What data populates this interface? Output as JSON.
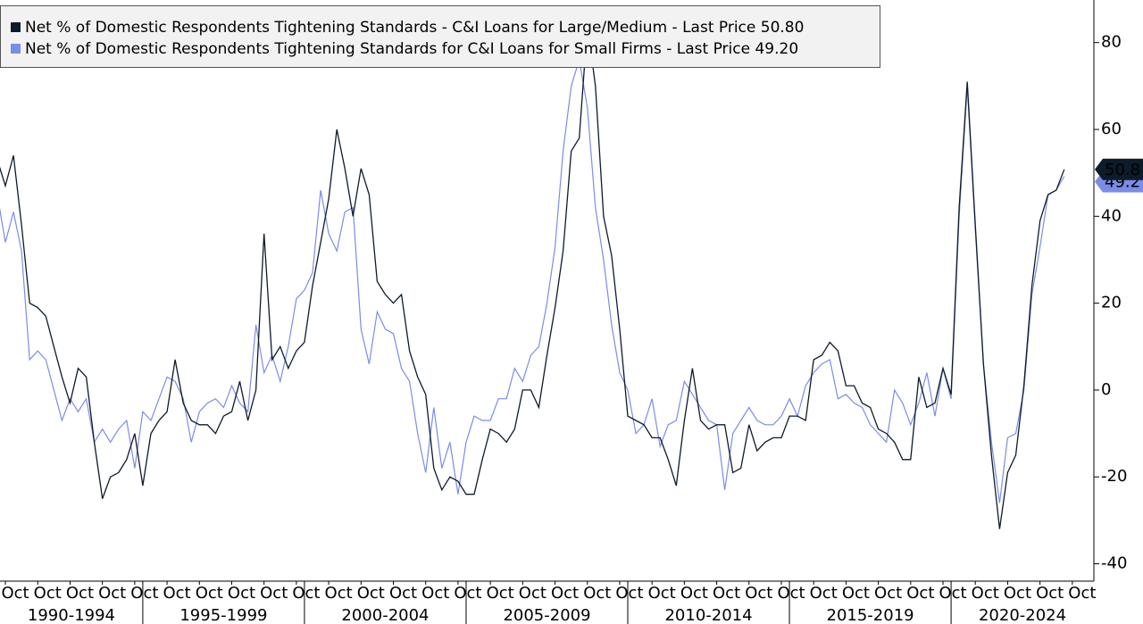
{
  "chart_data": {
    "type": "line",
    "x": [
      "1990-07",
      "1990-10",
      "1991-01",
      "1991-04",
      "1991-07",
      "1991-10",
      "1992-01",
      "1992-04",
      "1992-07",
      "1992-10",
      "1993-01",
      "1993-04",
      "1993-07",
      "1993-10",
      "1994-01",
      "1994-04",
      "1994-07",
      "1994-10",
      "1995-01",
      "1995-04",
      "1995-07",
      "1995-10",
      "1996-01",
      "1996-04",
      "1996-07",
      "1996-10",
      "1997-01",
      "1997-04",
      "1997-07",
      "1997-10",
      "1998-01",
      "1998-04",
      "1998-07",
      "1998-10",
      "1999-01",
      "1999-04",
      "1999-07",
      "1999-10",
      "2000-01",
      "2000-04",
      "2000-07",
      "2000-10",
      "2001-01",
      "2001-04",
      "2001-07",
      "2001-10",
      "2002-01",
      "2002-04",
      "2002-07",
      "2002-10",
      "2003-01",
      "2003-04",
      "2003-07",
      "2003-10",
      "2004-01",
      "2004-04",
      "2004-07",
      "2004-10",
      "2005-01",
      "2005-04",
      "2005-07",
      "2005-10",
      "2006-01",
      "2006-04",
      "2006-07",
      "2006-10",
      "2007-01",
      "2007-04",
      "2007-07",
      "2007-10",
      "2008-01",
      "2008-04",
      "2008-07",
      "2008-10",
      "2009-01",
      "2009-04",
      "2009-07",
      "2009-10",
      "2010-01",
      "2010-04",
      "2010-07",
      "2010-10",
      "2011-01",
      "2011-04",
      "2011-07",
      "2011-10",
      "2012-01",
      "2012-04",
      "2012-07",
      "2012-10",
      "2013-01",
      "2013-04",
      "2013-07",
      "2013-10",
      "2014-01",
      "2014-04",
      "2014-07",
      "2014-10",
      "2015-01",
      "2015-04",
      "2015-07",
      "2015-10",
      "2016-01",
      "2016-04",
      "2016-07",
      "2016-10",
      "2017-01",
      "2017-04",
      "2017-07",
      "2017-10",
      "2018-01",
      "2018-04",
      "2018-07",
      "2018-10",
      "2019-01",
      "2019-04",
      "2019-07",
      "2019-10",
      "2020-01",
      "2020-04",
      "2020-07",
      "2020-10",
      "2021-01",
      "2021-04",
      "2021-07",
      "2021-10",
      "2022-01",
      "2022-04",
      "2022-07",
      "2022-10",
      "2023-01",
      "2023-04",
      "2023-07"
    ],
    "series": [
      {
        "name": "Net % of Domestic Respondents Tightening Standards - C&I Loans for Large/Medium - Last Price 50.80",
        "last_label": "50.8",
        "color": "#0d1b2a",
        "values": [
          53,
          47,
          54,
          38,
          20,
          19,
          17,
          10,
          3,
          -3,
          5,
          3,
          -12,
          -25,
          -20,
          -19,
          -16,
          -10,
          -22,
          -10,
          -7,
          -5,
          7,
          -3,
          -7,
          -8,
          -8,
          -10,
          -6,
          -5,
          2,
          -7,
          0,
          36,
          7,
          10,
          5,
          9,
          11,
          24,
          34,
          44,
          60,
          51,
          40,
          51,
          45,
          25,
          22,
          20,
          22,
          9,
          3,
          -1,
          -18,
          -23,
          -20,
          -21,
          -24,
          -24,
          -16,
          -9,
          -10,
          -12,
          -9,
          0,
          0,
          -4,
          8,
          19,
          32,
          55,
          58,
          84,
          70,
          40,
          31,
          14,
          -6,
          -7,
          -8,
          -11,
          -11,
          -16,
          -22,
          -7,
          5,
          -7,
          -9,
          -8,
          -8,
          -19,
          -18,
          -8,
          -14,
          -12,
          -11,
          -11,
          -6,
          -6,
          -7,
          7,
          8,
          11,
          9,
          1,
          1,
          -3,
          -4,
          -9,
          -10,
          -12,
          -16,
          -16,
          3,
          -4,
          -3,
          5,
          -1,
          42,
          71,
          38,
          6,
          -15,
          -32,
          -19,
          -15,
          1,
          24,
          39,
          45,
          46,
          50.8
        ]
      },
      {
        "name": "Net % of Domestic Respondents Tightening Standards for C&I Loans for Small Firms - Last Price  49.20",
        "last_label": "49.2",
        "color": "#7b8ce8",
        "values": [
          45,
          34,
          41,
          32,
          7,
          9,
          7,
          0,
          -7,
          -2,
          -5,
          -2,
          -12,
          -9,
          -12,
          -9,
          -7,
          -18,
          -5,
          -7,
          -2,
          3,
          2,
          -2,
          -12,
          -5,
          -3,
          -2,
          -4,
          1,
          -3,
          -5,
          15,
          4,
          8,
          2,
          10,
          21,
          23,
          27,
          46,
          36,
          32,
          41,
          42,
          14,
          6,
          18,
          14,
          13,
          5,
          2,
          -10,
          -19,
          -4,
          -18,
          -12,
          -24,
          -12,
          -6,
          -7,
          -7,
          -2,
          -2,
          5,
          2,
          8,
          10,
          20,
          33,
          55,
          70,
          76,
          65,
          42,
          30,
          15,
          4,
          0,
          -10,
          -8,
          -2,
          -13,
          -8,
          -7,
          2,
          -1,
          -4,
          -7,
          -8,
          -23,
          -10,
          -7,
          -4,
          -7,
          -8,
          -8,
          -6,
          -2,
          -6,
          1,
          4,
          6,
          7,
          -2,
          -1,
          -3,
          -4,
          -8,
          -10,
          -12,
          0,
          -3,
          -8,
          -3,
          4,
          -6,
          5,
          -2,
          40,
          70,
          37,
          6,
          -12,
          -26,
          -11,
          -10,
          0,
          22,
          33,
          45,
          46,
          49.2
        ]
      }
    ],
    "xlim": [
      "1990-08",
      "2024-06"
    ],
    "xticks": [
      {
        "value": "1990-10",
        "label": "Oct"
      },
      {
        "value": "1991-10",
        "label": "Oct"
      },
      {
        "value": "1992-10",
        "label": "Oct"
      },
      {
        "value": "1993-10",
        "label": "Oct"
      },
      {
        "value": "1994-10",
        "label": "Oct"
      },
      {
        "value": "1995-10",
        "label": "Oct"
      },
      {
        "value": "1996-10",
        "label": "Oct"
      },
      {
        "value": "1997-10",
        "label": "Oct"
      },
      {
        "value": "1998-10",
        "label": "Oct"
      },
      {
        "value": "1999-10",
        "label": "Oct"
      },
      {
        "value": "2000-10",
        "label": "Oct"
      },
      {
        "value": "2001-10",
        "label": "Oct"
      },
      {
        "value": "2002-10",
        "label": "Oct"
      },
      {
        "value": "2003-10",
        "label": "Oct"
      },
      {
        "value": "2004-10",
        "label": "Oct"
      },
      {
        "value": "2005-10",
        "label": "Oct"
      },
      {
        "value": "2006-10",
        "label": "Oct"
      },
      {
        "value": "2007-10",
        "label": "Oct"
      },
      {
        "value": "2008-10",
        "label": "Oct"
      },
      {
        "value": "2009-10",
        "label": "Oct"
      },
      {
        "value": "2010-10",
        "label": "Oct"
      },
      {
        "value": "2011-10",
        "label": "Oct"
      },
      {
        "value": "2012-10",
        "label": "Oct"
      },
      {
        "value": "2013-10",
        "label": "Oct"
      },
      {
        "value": "2014-10",
        "label": "Oct"
      },
      {
        "value": "2015-10",
        "label": "Oct"
      },
      {
        "value": "2016-10",
        "label": "Oct"
      },
      {
        "value": "2017-10",
        "label": "Oct"
      },
      {
        "value": "2018-10",
        "label": "Oct"
      },
      {
        "value": "2019-10",
        "label": "Oct"
      },
      {
        "value": "2020-10",
        "label": "Oct"
      },
      {
        "value": "2021-10",
        "label": "Oct"
      },
      {
        "value": "2022-10",
        "label": "Oct"
      },
      {
        "value": "2023-10",
        "label": "Oct"
      }
    ],
    "x_groups": [
      {
        "label": "1990-1994",
        "range": [
          "1990-01",
          "1995-01"
        ]
      },
      {
        "label": "1995-1999",
        "range": [
          "1995-01",
          "2000-01"
        ]
      },
      {
        "label": "2000-2004",
        "range": [
          "2000-01",
          "2005-01"
        ]
      },
      {
        "label": "2005-2009",
        "range": [
          "2005-01",
          "2010-01"
        ]
      },
      {
        "label": "2010-2014",
        "range": [
          "2010-01",
          "2015-01"
        ]
      },
      {
        "label": "2015-2019",
        "range": [
          "2015-01",
          "2020-01"
        ]
      },
      {
        "label": "2020-2024",
        "range": [
          "2020-01",
          "2025-01"
        ]
      }
    ],
    "ylim": [
      -44,
      89.8
    ],
    "yticks": [
      -40,
      -20,
      0,
      20,
      40,
      60,
      80
    ],
    "y_axis_side": "right"
  }
}
